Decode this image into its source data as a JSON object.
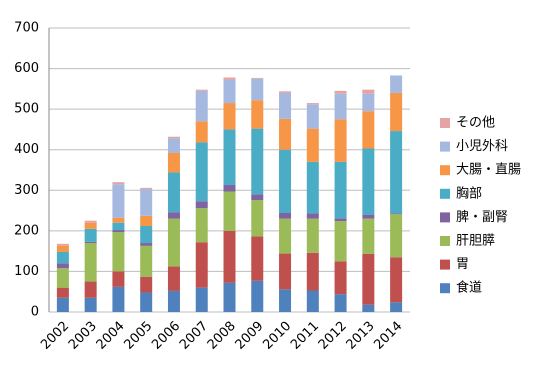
{
  "chart_data": {
    "type": "stacked-bar",
    "categories": [
      "2002",
      "2003",
      "2004",
      "2005",
      "2006",
      "2007",
      "2008",
      "2009",
      "2010",
      "2011",
      "2012",
      "2013",
      "2014"
    ],
    "series": [
      {
        "name": "食道",
        "color": "#4f81bd",
        "values": [
          35,
          35,
          62,
          48,
          52,
          60,
          72,
          77,
          56,
          53,
          44,
          18,
          24
        ]
      },
      {
        "name": "胃",
        "color": "#c0504d",
        "values": [
          25,
          40,
          38,
          39,
          60,
          112,
          128,
          109,
          88,
          93,
          81,
          125,
          111
        ]
      },
      {
        "name": "肝胆膵",
        "color": "#9bbb59",
        "values": [
          48,
          95,
          97,
          76,
          118,
          84,
          97,
          90,
          86,
          84,
          99,
          87,
          106
        ]
      },
      {
        "name": "脾・副腎",
        "color": "#8064a2",
        "values": [
          12,
          3,
          5,
          7,
          16,
          17,
          16,
          14,
          14,
          13,
          7,
          10,
          2
        ]
      },
      {
        "name": "胸部",
        "color": "#4bacc6",
        "values": [
          28,
          32,
          18,
          42,
          98,
          145,
          137,
          162,
          156,
          127,
          139,
          163,
          203
        ]
      },
      {
        "name": "大腸・直腸",
        "color": "#f79646",
        "values": [
          15,
          15,
          12,
          25,
          48,
          52,
          65,
          70,
          76,
          82,
          105,
          92,
          94
        ]
      },
      {
        "name": "小児外科",
        "color": "#a5b8e0",
        "values": [
          0,
          0,
          83,
          66,
          36,
          75,
          57,
          53,
          64,
          60,
          63,
          43,
          43
        ]
      },
      {
        "name": "その他",
        "color": "#e6a3a3",
        "values": [
          5,
          5,
          5,
          3,
          4,
          3,
          6,
          2,
          4,
          3,
          7,
          10,
          0
        ]
      }
    ],
    "ylim": [
      0,
      700
    ],
    "yticks": [
      0,
      100,
      200,
      300,
      400,
      500,
      600,
      700
    ],
    "grid": true
  }
}
